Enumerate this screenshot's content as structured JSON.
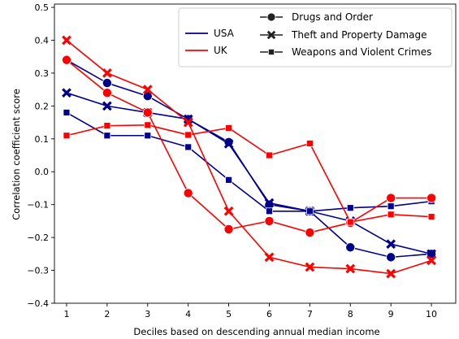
{
  "chart_data": {
    "type": "line",
    "xlabel": "Deciles based on descending annual median income",
    "ylabel": "Correlation coefficient score",
    "x": [
      1,
      2,
      3,
      4,
      5,
      6,
      7,
      8,
      9,
      10
    ],
    "xlim": [
      0.7,
      10.6
    ],
    "ylim": [
      -0.4,
      0.51
    ],
    "xticks": [
      "1",
      "2",
      "3",
      "4",
      "5",
      "6",
      "7",
      "8",
      "9",
      "10"
    ],
    "yticks": [
      -0.4,
      -0.3,
      -0.2,
      -0.1,
      0.0,
      0.1,
      0.2,
      0.3,
      0.4,
      0.5
    ],
    "ytick_labels": [
      "−0.4",
      "−0.3",
      "−0.2",
      "−0.1",
      "0.0",
      "0.1",
      "0.2",
      "0.3",
      "0.4",
      "0.5"
    ],
    "grid": false,
    "legend": {
      "placement": "top-right",
      "countries": [
        {
          "label": "USA",
          "color": "#00008b"
        },
        {
          "label": "UK",
          "color": "#ff0000"
        }
      ],
      "crimes": [
        {
          "label": "Drugs and Order",
          "marker": "circle"
        },
        {
          "label": "Theft and Property Damage",
          "marker": "x"
        },
        {
          "label": "Weapons and Violent Crimes",
          "marker": "square"
        }
      ]
    },
    "series": [
      {
        "country": "USA",
        "crime": "Drugs and Order",
        "color": "#00008b",
        "marker": "circle",
        "values": [
          0.34,
          0.27,
          0.23,
          0.16,
          0.09,
          -0.1,
          -0.12,
          -0.23,
          -0.26,
          -0.25
        ]
      },
      {
        "country": "USA",
        "crime": "Theft and Property Damage",
        "color": "#00008b",
        "marker": "x",
        "values": [
          0.24,
          0.2,
          0.18,
          0.16,
          0.085,
          -0.095,
          -0.12,
          -0.15,
          -0.22,
          -0.25
        ]
      },
      {
        "country": "USA",
        "crime": "Weapons and Violent Crimes",
        "color": "#00008b",
        "marker": "square",
        "values": [
          0.18,
          0.11,
          0.11,
          0.075,
          -0.025,
          -0.12,
          -0.12,
          -0.11,
          -0.105,
          -0.09
        ]
      },
      {
        "country": "UK",
        "crime": "Drugs and Order",
        "color": "#ff0000",
        "marker": "circle",
        "values": [
          0.34,
          0.24,
          0.18,
          -0.065,
          -0.175,
          -0.15,
          -0.185,
          -0.155,
          -0.08,
          -0.08
        ]
      },
      {
        "country": "UK",
        "crime": "Theft and Property Damage",
        "color": "#ff0000",
        "marker": "x",
        "values": [
          0.4,
          0.3,
          0.25,
          0.15,
          -0.12,
          -0.26,
          -0.29,
          -0.295,
          -0.31,
          -0.27
        ]
      },
      {
        "country": "UK",
        "crime": "Weapons and Violent Crimes",
        "color": "#ff0000",
        "marker": "square",
        "values": [
          0.11,
          0.14,
          0.142,
          0.112,
          0.133,
          0.05,
          0.086,
          -0.153,
          -0.13,
          -0.137
        ]
      }
    ]
  }
}
